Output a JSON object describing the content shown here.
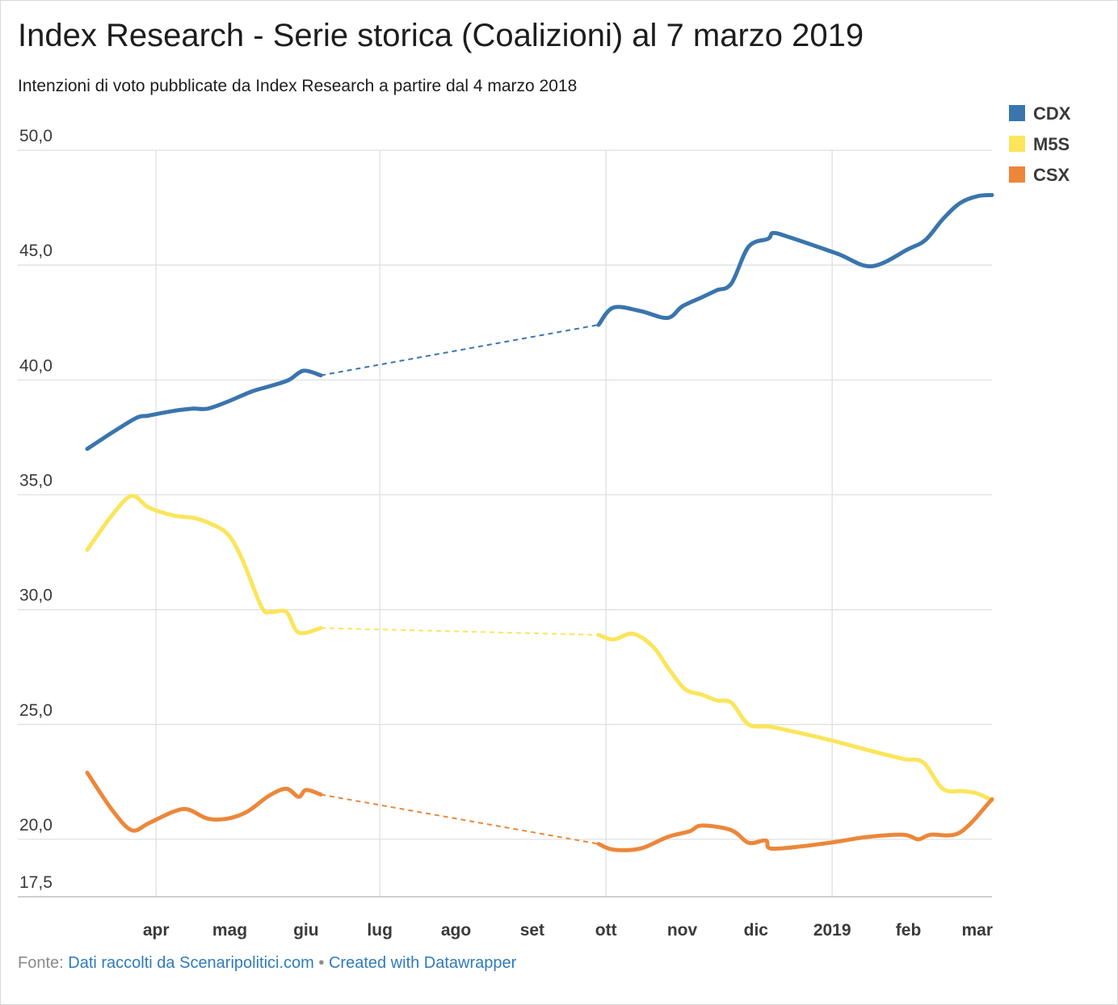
{
  "title": "Index Research - Serie storica (Coalizioni) al 7 marzo 2019",
  "subtitle": "Intenzioni di voto pubblicate da Index Research a partire dal 4 marzo 2018",
  "footer": {
    "label": "Fonte:",
    "source": "Dati raccolti da Scenaripolitici.com",
    "separator": "•",
    "credit": "Created with Datawrapper"
  },
  "colors": {
    "CDX": "#3a75ad",
    "M5S": "#fbe55b",
    "CSX": "#ec873a",
    "grid": "#dedede",
    "axis": "#bdbdbd"
  },
  "chart_data": {
    "type": "line",
    "title": "Index Research - Serie storica (Coalizioni) al 7 marzo 2019",
    "subtitle": "Intenzioni di voto pubblicate da Index Research a partire dal 4 marzo 2018",
    "xlabel": "",
    "ylabel": "",
    "x_range": [
      "2018-03-04",
      "2019-03-07"
    ],
    "ylim": [
      17.5,
      50
    ],
    "y_ticks": [
      {
        "value": 50,
        "label": "50,0"
      },
      {
        "value": 45,
        "label": "45,0"
      },
      {
        "value": 40,
        "label": "40,0"
      },
      {
        "value": 35,
        "label": "35,0"
      },
      {
        "value": 30,
        "label": "30,0"
      },
      {
        "value": 25,
        "label": "25,0"
      },
      {
        "value": 20,
        "label": "20,0"
      },
      {
        "value": 17.5,
        "label": "17,5"
      }
    ],
    "x_ticks": [
      {
        "date": "2018-04-01",
        "label": "apr"
      },
      {
        "date": "2018-05-01",
        "label": "mag"
      },
      {
        "date": "2018-06-01",
        "label": "giu"
      },
      {
        "date": "2018-07-01",
        "label": "lug"
      },
      {
        "date": "2018-08-01",
        "label": "ago"
      },
      {
        "date": "2018-09-01",
        "label": "set"
      },
      {
        "date": "2018-10-01",
        "label": "ott"
      },
      {
        "date": "2018-11-01",
        "label": "nov"
      },
      {
        "date": "2018-12-01",
        "label": "dic"
      },
      {
        "date": "2019-01-01",
        "label": "2019"
      },
      {
        "date": "2019-02-01",
        "label": "feb"
      },
      {
        "date": "2019-03-01",
        "label": "mar"
      }
    ],
    "vertical_grid_at": [
      "2018-04-01",
      "2018-07-01",
      "2018-10-01",
      "2019-01-01"
    ],
    "gap": {
      "from": "2018-06-07",
      "to": "2018-09-28",
      "style": "dashed"
    },
    "legend": {
      "position": "top-right"
    },
    "series": [
      {
        "name": "CDX",
        "color": "#3a75ad",
        "points": [
          [
            "2018-03-04",
            37.0
          ],
          [
            "2018-03-14",
            37.7
          ],
          [
            "2018-03-24",
            38.35
          ],
          [
            "2018-03-29",
            38.45
          ],
          [
            "2018-04-08",
            38.65
          ],
          [
            "2018-04-16",
            38.75
          ],
          [
            "2018-04-22",
            38.75
          ],
          [
            "2018-04-30",
            39.05
          ],
          [
            "2018-05-10",
            39.5
          ],
          [
            "2018-05-18",
            39.75
          ],
          [
            "2018-05-25",
            40.0
          ],
          [
            "2018-05-31",
            40.4
          ],
          [
            "2018-06-07",
            40.2
          ],
          [
            "2018-09-28",
            42.4
          ],
          [
            "2018-10-04",
            43.15
          ],
          [
            "2018-10-15",
            43.0
          ],
          [
            "2018-10-26",
            42.7
          ],
          [
            "2018-11-01",
            43.2
          ],
          [
            "2018-11-09",
            43.6
          ],
          [
            "2018-11-15",
            43.9
          ],
          [
            "2018-11-21",
            44.2
          ],
          [
            "2018-11-28",
            45.8
          ],
          [
            "2018-12-06",
            46.15
          ],
          [
            "2018-12-08",
            46.4
          ],
          [
            "2018-12-15",
            46.2
          ],
          [
            "2019-01-03",
            45.5
          ],
          [
            "2019-01-17",
            44.95
          ],
          [
            "2019-02-01",
            45.7
          ],
          [
            "2019-02-08",
            46.1
          ],
          [
            "2019-02-15",
            47.0
          ],
          [
            "2019-02-22",
            47.7
          ],
          [
            "2019-03-01",
            48.0
          ],
          [
            "2019-03-07",
            48.05
          ]
        ]
      },
      {
        "name": "M5S",
        "color": "#fbe55b",
        "points": [
          [
            "2018-03-04",
            32.6
          ],
          [
            "2018-03-14",
            34.1
          ],
          [
            "2018-03-22",
            34.95
          ],
          [
            "2018-03-29",
            34.45
          ],
          [
            "2018-04-08",
            34.1
          ],
          [
            "2018-04-16",
            34.0
          ],
          [
            "2018-04-22",
            33.8
          ],
          [
            "2018-04-30",
            33.3
          ],
          [
            "2018-05-06",
            32.2
          ],
          [
            "2018-05-14",
            30.1
          ],
          [
            "2018-05-18",
            29.9
          ],
          [
            "2018-05-24",
            29.9
          ],
          [
            "2018-05-29",
            29.0
          ],
          [
            "2018-06-07",
            29.2
          ],
          [
            "2018-09-28",
            28.9
          ],
          [
            "2018-10-04",
            28.7
          ],
          [
            "2018-10-12",
            28.95
          ],
          [
            "2018-10-20",
            28.4
          ],
          [
            "2018-10-26",
            27.5
          ],
          [
            "2018-11-02",
            26.55
          ],
          [
            "2018-11-09",
            26.3
          ],
          [
            "2018-11-15",
            26.05
          ],
          [
            "2018-11-21",
            25.95
          ],
          [
            "2018-11-28",
            25.0
          ],
          [
            "2018-12-07",
            24.9
          ],
          [
            "2018-12-20",
            24.6
          ],
          [
            "2019-01-01",
            24.3
          ],
          [
            "2019-01-15",
            23.9
          ],
          [
            "2019-01-30",
            23.5
          ],
          [
            "2019-02-07",
            23.35
          ],
          [
            "2019-02-15",
            22.2
          ],
          [
            "2019-02-23",
            22.1
          ],
          [
            "2019-03-01",
            22.0
          ],
          [
            "2019-03-07",
            21.7
          ]
        ]
      },
      {
        "name": "CSX",
        "color": "#ec873a",
        "points": [
          [
            "2018-03-04",
            22.9
          ],
          [
            "2018-03-14",
            21.3
          ],
          [
            "2018-03-22",
            20.4
          ],
          [
            "2018-03-29",
            20.7
          ],
          [
            "2018-04-08",
            21.2
          ],
          [
            "2018-04-14",
            21.3
          ],
          [
            "2018-04-22",
            20.9
          ],
          [
            "2018-04-30",
            20.9
          ],
          [
            "2018-05-08",
            21.2
          ],
          [
            "2018-05-17",
            21.9
          ],
          [
            "2018-05-24",
            22.2
          ],
          [
            "2018-05-29",
            21.85
          ],
          [
            "2018-06-01",
            22.15
          ],
          [
            "2018-06-07",
            21.95
          ],
          [
            "2018-09-28",
            19.8
          ],
          [
            "2018-10-04",
            19.55
          ],
          [
            "2018-10-15",
            19.6
          ],
          [
            "2018-10-26",
            20.1
          ],
          [
            "2018-11-04",
            20.35
          ],
          [
            "2018-11-09",
            20.6
          ],
          [
            "2018-11-21",
            20.4
          ],
          [
            "2018-11-28",
            19.85
          ],
          [
            "2018-12-05",
            19.95
          ],
          [
            "2018-12-07",
            19.6
          ],
          [
            "2018-12-20",
            19.7
          ],
          [
            "2019-01-03",
            19.9
          ],
          [
            "2019-01-15",
            20.1
          ],
          [
            "2019-01-30",
            20.2
          ],
          [
            "2019-02-05",
            20.0
          ],
          [
            "2019-02-10",
            20.2
          ],
          [
            "2019-02-22",
            20.3
          ],
          [
            "2019-03-07",
            21.75
          ]
        ]
      }
    ]
  }
}
